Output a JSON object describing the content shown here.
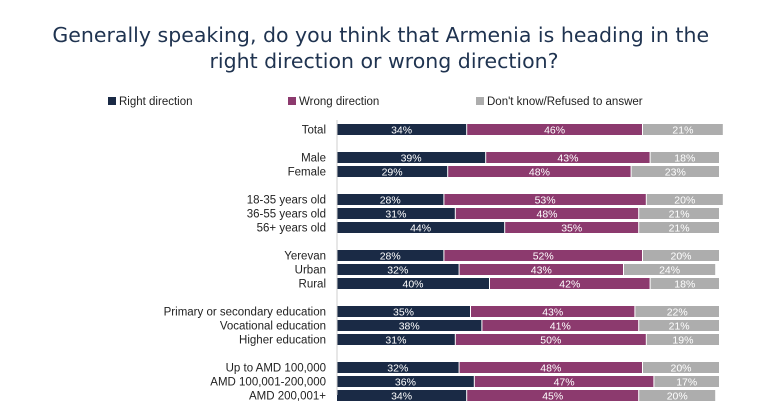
{
  "chart_data": {
    "type": "bar",
    "orientation": "horizontal",
    "stacked": true,
    "title": "Generally speaking, do you think that Armenia is heading in the right direction or wrong direction?",
    "legend_position": "top",
    "value_suffix": "%",
    "series": [
      {
        "name": "Right direction",
        "color": "#1a2a45"
      },
      {
        "name": "Wrong direction",
        "color": "#8c3a6e"
      },
      {
        "name": "Don't know/Refused to answer",
        "color": "#adadad"
      }
    ],
    "groups": [
      {
        "rows": [
          {
            "label": "Total",
            "values": [
              34,
              46,
              21
            ]
          }
        ]
      },
      {
        "rows": [
          {
            "label": "Male",
            "values": [
              39,
              43,
              18
            ]
          },
          {
            "label": "Female",
            "values": [
              29,
              48,
              23
            ]
          }
        ]
      },
      {
        "rows": [
          {
            "label": "18-35 years old",
            "values": [
              28,
              53,
              20
            ]
          },
          {
            "label": "36-55 years old",
            "values": [
              31,
              48,
              21
            ]
          },
          {
            "label": "56+ years old",
            "values": [
              44,
              35,
              21
            ]
          }
        ]
      },
      {
        "rows": [
          {
            "label": "Yerevan",
            "values": [
              28,
              52,
              20
            ]
          },
          {
            "label": "Urban",
            "values": [
              32,
              43,
              24
            ]
          },
          {
            "label": "Rural",
            "values": [
              40,
              42,
              18
            ]
          }
        ]
      },
      {
        "rows": [
          {
            "label": "Primary or secondary education",
            "values": [
              35,
              43,
              22
            ]
          },
          {
            "label": "Vocational education",
            "values": [
              38,
              41,
              21
            ]
          },
          {
            "label": "Higher education",
            "values": [
              31,
              50,
              19
            ]
          }
        ]
      },
      {
        "rows": [
          {
            "label": "Up to AMD 100,000",
            "values": [
              32,
              48,
              20
            ]
          },
          {
            "label": "AMD 100,001-200,000",
            "values": [
              36,
              47,
              17
            ]
          },
          {
            "label": "AMD 200,001+",
            "values": [
              34,
              45,
              20
            ]
          }
        ]
      }
    ]
  }
}
